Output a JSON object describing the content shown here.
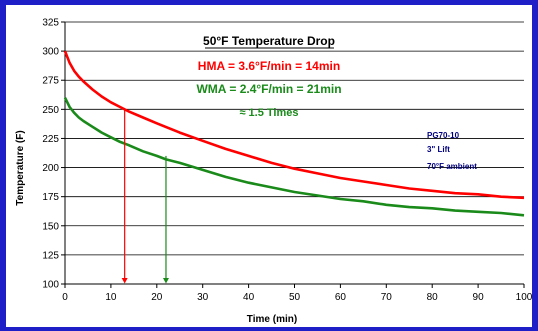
{
  "chart_data": {
    "type": "line",
    "title": "50°F Temperature Drop",
    "xlabel": "Time (min)",
    "ylabel": "Temperature (F)",
    "xlim": [
      0,
      100
    ],
    "ylim": [
      100,
      325
    ],
    "xticks": [
      0,
      10,
      20,
      30,
      40,
      50,
      60,
      70,
      80,
      90,
      100
    ],
    "yticks": [
      100,
      125,
      150,
      175,
      200,
      225,
      250,
      275,
      300,
      325
    ],
    "grid": "horizontal",
    "series": [
      {
        "name": "HMA",
        "color": "#ff0000",
        "x": [
          0,
          1,
          2,
          3,
          4,
          6,
          8,
          10,
          12,
          14,
          17,
          20,
          25,
          30,
          35,
          40,
          45,
          50,
          55,
          60,
          65,
          70,
          75,
          80,
          85,
          90,
          95,
          100
        ],
        "y": [
          300,
          290,
          283,
          278,
          274,
          267,
          261,
          256,
          252,
          248,
          243,
          238,
          230,
          223,
          216,
          210,
          204,
          199,
          195,
          191,
          188,
          185,
          182,
          180,
          178,
          177,
          175,
          174
        ]
      },
      {
        "name": "WMA",
        "color": "#1a8a1a",
        "x": [
          0,
          1,
          2,
          3,
          4,
          6,
          8,
          10,
          12,
          14,
          17,
          20,
          22,
          25,
          30,
          35,
          40,
          45,
          50,
          55,
          60,
          65,
          70,
          75,
          80,
          85,
          90,
          95,
          100
        ],
        "y": [
          260,
          252,
          247,
          243,
          240,
          235,
          230,
          226,
          222,
          219,
          214,
          210,
          207,
          204,
          198,
          192,
          187,
          183,
          179,
          176,
          173,
          171,
          168,
          166,
          165,
          163,
          162,
          161,
          159
        ]
      }
    ],
    "markers": [
      {
        "x": 13,
        "y_from": 250,
        "y_to": 100,
        "color": "#ff0000"
      },
      {
        "x": 22,
        "y_from": 210,
        "y_to": 100,
        "color": "#1a8a1a"
      }
    ],
    "annotations": {
      "title": "50°F Temperature Drop",
      "hma": "HMA =  3.6°F/min = 14min",
      "wma": "WMA = 2.4°F/min = 21min",
      "ratio": "≈ 1.5 Times",
      "info": [
        "PG70-10",
        "3\" Lift",
        "70°F ambient"
      ]
    },
    "colors": {
      "frame": "#1f1fc8",
      "hma": "#ff0000",
      "wma": "#1a8a1a",
      "info": "#000080"
    }
  }
}
